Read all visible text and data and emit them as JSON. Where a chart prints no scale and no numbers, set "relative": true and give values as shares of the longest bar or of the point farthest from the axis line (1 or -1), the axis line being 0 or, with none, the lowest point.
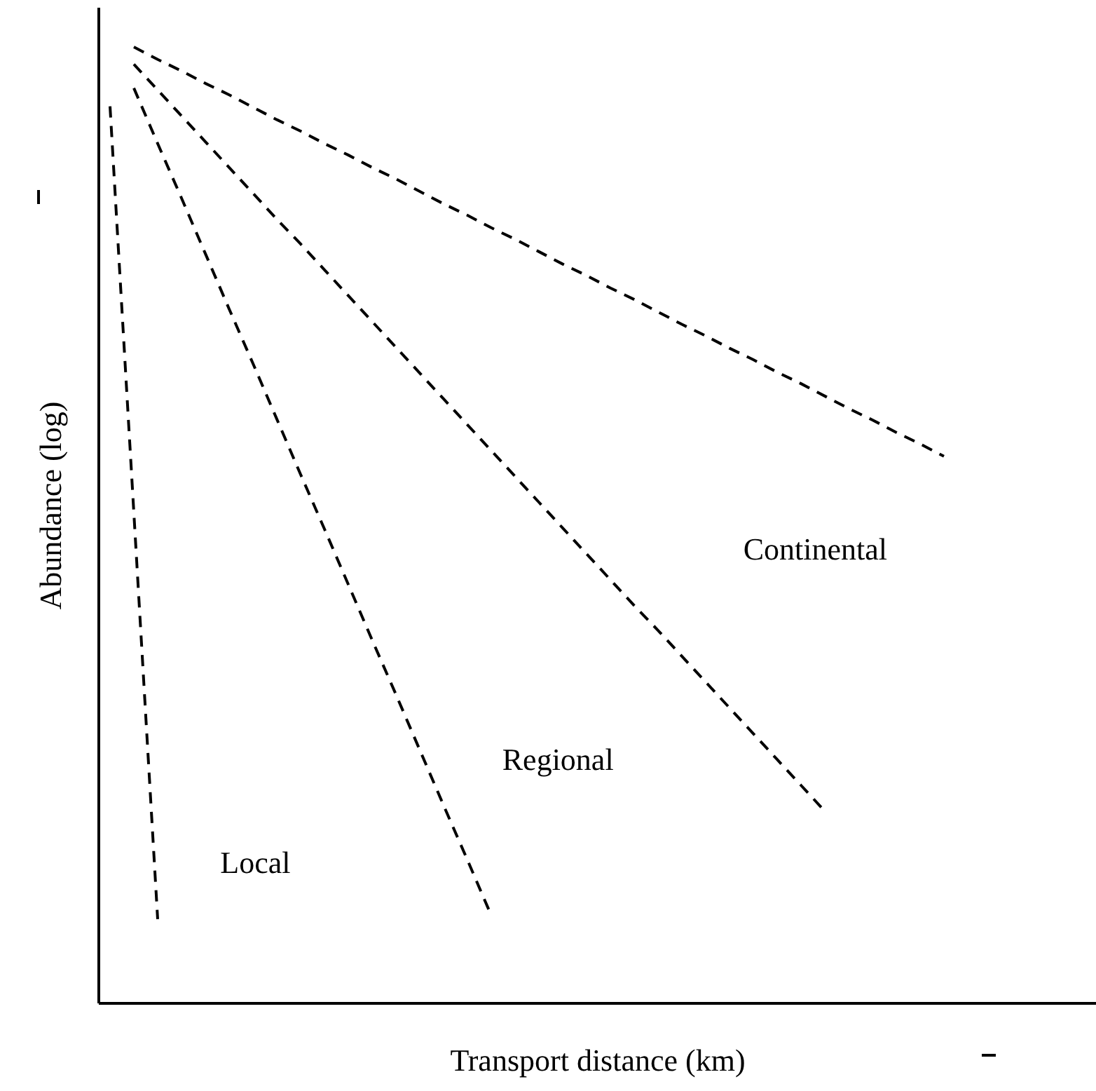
{
  "chart_data": {
    "type": "line",
    "relative": true,
    "xlabel": "Transport distance (km)",
    "ylabel": "Abundance (log)",
    "line_style": "dashed",
    "marker": "none",
    "grid": false,
    "categories": [
      null,
      null,
      null,
      null,
      null,
      null,
      null,
      null,
      null,
      null,
      null,
      null,
      null,
      null,
      null,
      null,
      null,
      null,
      null,
      null,
      null,
      null,
      null,
      null,
      null,
      null,
      null,
      null,
      null,
      null,
      null,
      null,
      null,
      null,
      null,
      null,
      null,
      null,
      null,
      null,
      null,
      null
    ],
    "series": [
      {
        "color": "#000000",
        "values": [
          0.938,
          0.513,
          0.088,
          null,
          null,
          null,
          null,
          null,
          null,
          null,
          null,
          null,
          null,
          null,
          null,
          null,
          null,
          null,
          null,
          null,
          null,
          null,
          null,
          null,
          null,
          null,
          null,
          null,
          null,
          null,
          null,
          null,
          null,
          null,
          null,
          null,
          null,
          null,
          null,
          null,
          null,
          null
        ]
      },
      {
        "color": "#000000",
        "values": [
          null,
          0.957,
          0.899,
          0.842,
          0.784,
          0.726,
          0.669,
          0.611,
          0.553,
          0.496,
          0.438,
          0.38,
          0.323,
          0.265,
          0.207,
          0.15,
          0.092,
          null,
          null,
          null,
          null,
          null,
          null,
          null,
          null,
          null,
          null,
          null,
          null,
          null,
          null,
          null,
          null,
          null,
          null,
          null,
          null,
          null,
          null,
          null,
          null,
          null
        ]
      },
      {
        "color": "#000000",
        "values": [
          null,
          0.982,
          0.955,
          0.928,
          0.901,
          0.874,
          0.847,
          0.82,
          0.794,
          0.767,
          0.74,
          0.713,
          0.686,
          0.659,
          0.632,
          0.605,
          0.578,
          0.551,
          0.524,
          0.497,
          0.47,
          0.443,
          0.416,
          0.39,
          0.363,
          0.336,
          0.309,
          0.282,
          0.255,
          0.228,
          0.201,
          null,
          null,
          null,
          null,
          null,
          null,
          null,
          null,
          null,
          null,
          null
        ]
      },
      {
        "color": "#000000",
        "values": [
          null,
          1.0,
          0.987,
          0.975,
          0.962,
          0.95,
          0.937,
          0.924,
          0.912,
          0.899,
          0.887,
          0.874,
          0.862,
          0.849,
          0.836,
          0.824,
          0.811,
          0.799,
          0.786,
          0.773,
          0.761,
          0.748,
          0.736,
          0.723,
          0.71,
          0.698,
          0.685,
          0.673,
          0.66,
          0.648,
          0.635,
          0.622,
          0.61,
          0.597,
          0.585,
          0.572,
          null,
          null,
          null,
          null,
          null,
          null
        ]
      }
    ],
    "annotations": [
      "Local",
      "Regional",
      "Continental"
    ]
  }
}
